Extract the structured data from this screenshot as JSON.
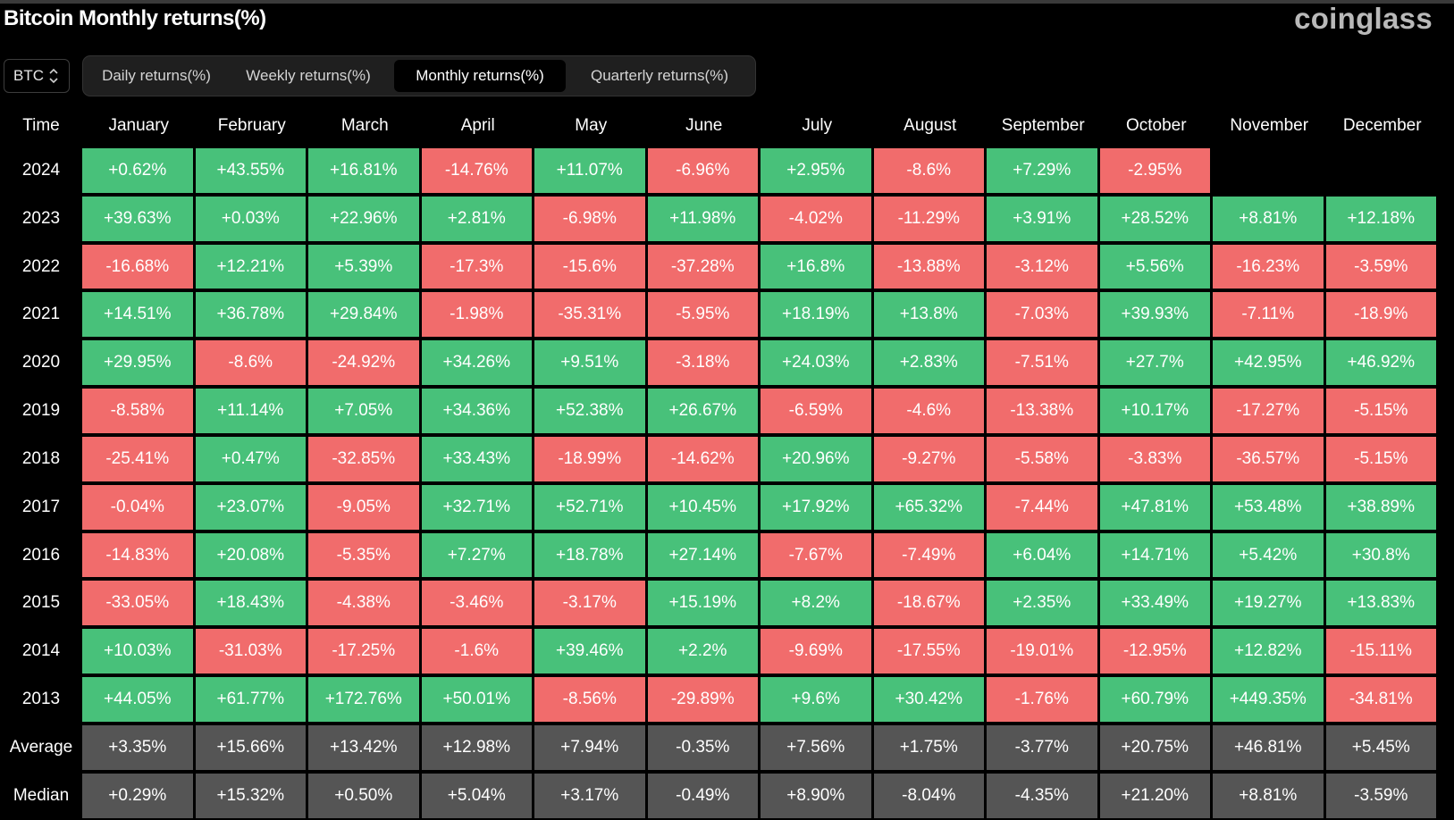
{
  "page": {
    "title": "Bitcoin Monthly returns(%)",
    "brand": "coinglass"
  },
  "colors": {
    "positive": "#48c17a",
    "negative": "#f16c6c",
    "summary": "#555555",
    "background": "#000000"
  },
  "asset_selector": {
    "value": "BTC",
    "icon": "up-down-chevron-icon"
  },
  "tabs": [
    {
      "label": "Daily returns(%)",
      "active": false
    },
    {
      "label": "Weekly returns(%)",
      "active": false
    },
    {
      "label": "Monthly returns(%)",
      "active": true
    },
    {
      "label": "Quarterly returns(%)",
      "active": false
    }
  ],
  "table": {
    "time_header": "Time",
    "months": [
      "January",
      "February",
      "March",
      "April",
      "May",
      "June",
      "July",
      "August",
      "September",
      "October",
      "November",
      "December"
    ],
    "rows": [
      {
        "label": "2024",
        "values": [
          "+0.62%",
          "+43.55%",
          "+16.81%",
          "-14.76%",
          "+11.07%",
          "-6.96%",
          "+2.95%",
          "-8.6%",
          "+7.29%",
          "-2.95%",
          "",
          ""
        ]
      },
      {
        "label": "2023",
        "values": [
          "+39.63%",
          "+0.03%",
          "+22.96%",
          "+2.81%",
          "-6.98%",
          "+11.98%",
          "-4.02%",
          "-11.29%",
          "+3.91%",
          "+28.52%",
          "+8.81%",
          "+12.18%"
        ]
      },
      {
        "label": "2022",
        "values": [
          "-16.68%",
          "+12.21%",
          "+5.39%",
          "-17.3%",
          "-15.6%",
          "-37.28%",
          "+16.8%",
          "-13.88%",
          "-3.12%",
          "+5.56%",
          "-16.23%",
          "-3.59%"
        ]
      },
      {
        "label": "2021",
        "values": [
          "+14.51%",
          "+36.78%",
          "+29.84%",
          "-1.98%",
          "-35.31%",
          "-5.95%",
          "+18.19%",
          "+13.8%",
          "-7.03%",
          "+39.93%",
          "-7.11%",
          "-18.9%"
        ]
      },
      {
        "label": "2020",
        "values": [
          "+29.95%",
          "-8.6%",
          "-24.92%",
          "+34.26%",
          "+9.51%",
          "-3.18%",
          "+24.03%",
          "+2.83%",
          "-7.51%",
          "+27.7%",
          "+42.95%",
          "+46.92%"
        ]
      },
      {
        "label": "2019",
        "values": [
          "-8.58%",
          "+11.14%",
          "+7.05%",
          "+34.36%",
          "+52.38%",
          "+26.67%",
          "-6.59%",
          "-4.6%",
          "-13.38%",
          "+10.17%",
          "-17.27%",
          "-5.15%"
        ]
      },
      {
        "label": "2018",
        "values": [
          "-25.41%",
          "+0.47%",
          "-32.85%",
          "+33.43%",
          "-18.99%",
          "-14.62%",
          "+20.96%",
          "-9.27%",
          "-5.58%",
          "-3.83%",
          "-36.57%",
          "-5.15%"
        ]
      },
      {
        "label": "2017",
        "values": [
          "-0.04%",
          "+23.07%",
          "-9.05%",
          "+32.71%",
          "+52.71%",
          "+10.45%",
          "+17.92%",
          "+65.32%",
          "-7.44%",
          "+47.81%",
          "+53.48%",
          "+38.89%"
        ]
      },
      {
        "label": "2016",
        "values": [
          "-14.83%",
          "+20.08%",
          "-5.35%",
          "+7.27%",
          "+18.78%",
          "+27.14%",
          "-7.67%",
          "-7.49%",
          "+6.04%",
          "+14.71%",
          "+5.42%",
          "+30.8%"
        ]
      },
      {
        "label": "2015",
        "values": [
          "-33.05%",
          "+18.43%",
          "-4.38%",
          "-3.46%",
          "-3.17%",
          "+15.19%",
          "+8.2%",
          "-18.67%",
          "+2.35%",
          "+33.49%",
          "+19.27%",
          "+13.83%"
        ]
      },
      {
        "label": "2014",
        "values": [
          "+10.03%",
          "-31.03%",
          "-17.25%",
          "-1.6%",
          "+39.46%",
          "+2.2%",
          "-9.69%",
          "-17.55%",
          "-19.01%",
          "-12.95%",
          "+12.82%",
          "-15.11%"
        ]
      },
      {
        "label": "2013",
        "values": [
          "+44.05%",
          "+61.77%",
          "+172.76%",
          "+50.01%",
          "-8.56%",
          "-29.89%",
          "+9.6%",
          "+30.42%",
          "-1.76%",
          "+60.79%",
          "+449.35%",
          "-34.81%"
        ]
      }
    ],
    "summary_rows": [
      {
        "label": "Average",
        "values": [
          "+3.35%",
          "+15.66%",
          "+13.42%",
          "+12.98%",
          "+7.94%",
          "-0.35%",
          "+7.56%",
          "+1.75%",
          "-3.77%",
          "+20.75%",
          "+46.81%",
          "+5.45%"
        ]
      },
      {
        "label": "Median",
        "values": [
          "+0.29%",
          "+15.32%",
          "+0.50%",
          "+5.04%",
          "+3.17%",
          "-0.49%",
          "+8.90%",
          "-8.04%",
          "-4.35%",
          "+21.20%",
          "+8.81%",
          "-3.59%"
        ]
      }
    ]
  }
}
